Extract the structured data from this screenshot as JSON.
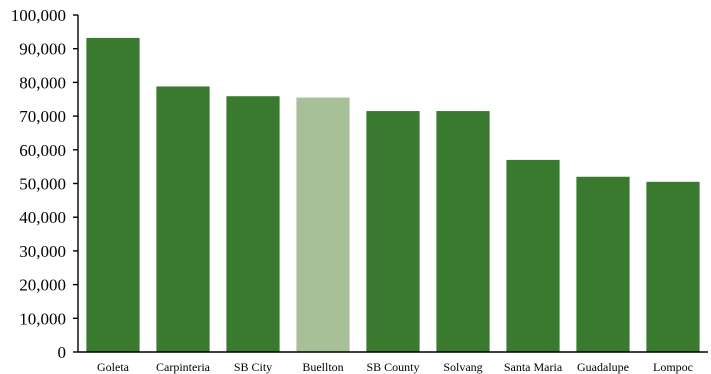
{
  "chart_data": {
    "type": "bar",
    "title": "",
    "xlabel": "",
    "ylabel": "",
    "categories": [
      "Goleta",
      "Carpinteria",
      "SB City",
      "Buellton",
      "SB County",
      "Solvang",
      "Santa Maria",
      "Guadalupe",
      "Lompoc"
    ],
    "values": [
      93200,
      78800,
      75900,
      75500,
      71500,
      71500,
      57000,
      52000,
      50500
    ],
    "highlight_index": 3,
    "colors": {
      "bar": "#3a7a2e",
      "highlight": "#a8c098"
    },
    "ylim": [
      0,
      100000
    ],
    "yticks": [
      0,
      10000,
      20000,
      30000,
      40000,
      50000,
      60000,
      70000,
      80000,
      90000,
      100000
    ],
    "ytick_labels": [
      "0",
      "10,000",
      "20,000",
      "30,000",
      "40,000",
      "50,000",
      "60,000",
      "70,000",
      "80,000",
      "90,000",
      "100,000"
    ],
    "grid": false,
    "legend": "none"
  }
}
